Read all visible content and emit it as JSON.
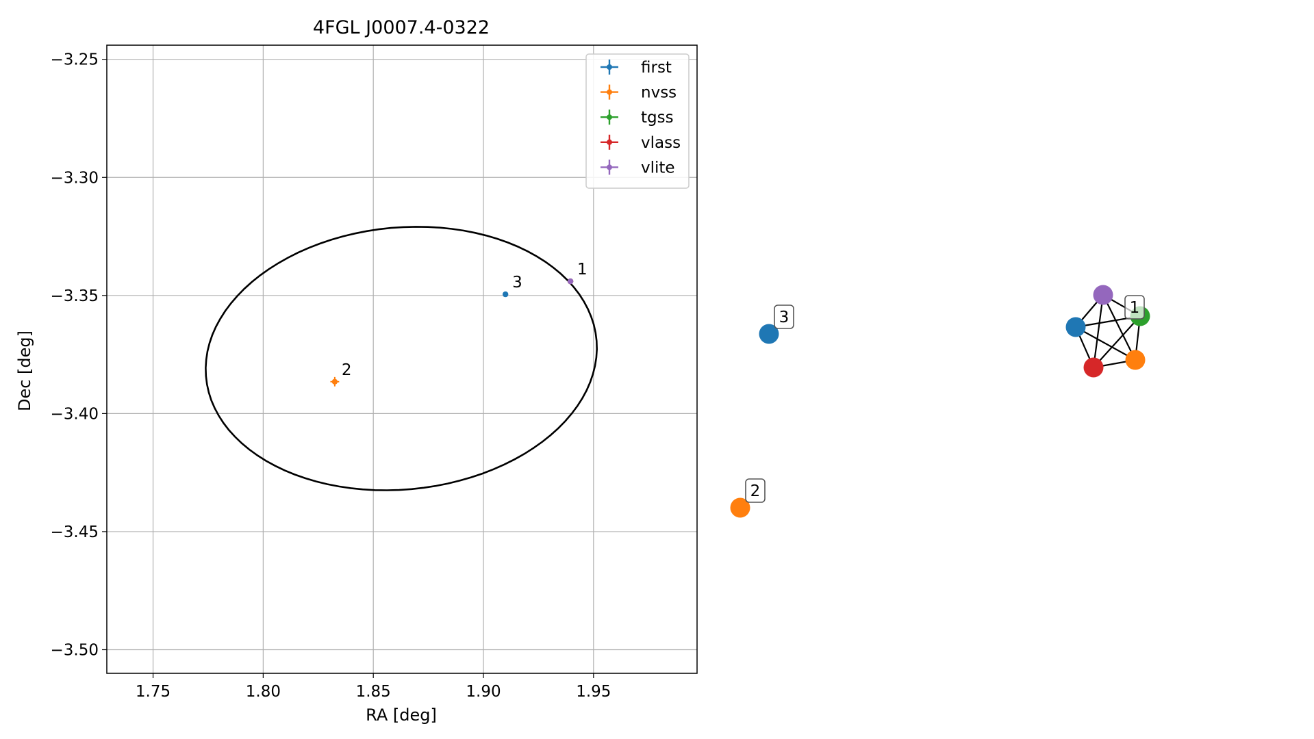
{
  "chart_data": [
    {
      "type": "scatter",
      "title": "4FGL J0007.4-0322",
      "xlabel": "RA [deg]",
      "ylabel": "Dec [deg]",
      "xlim": [
        1.729,
        1.997
      ],
      "ylim": [
        -3.51,
        -3.244
      ],
      "xticks": [
        1.75,
        1.8,
        1.85,
        1.9,
        1.95
      ],
      "xtick_labels": [
        "1.75",
        "1.80",
        "1.85",
        "1.90",
        "1.95"
      ],
      "yticks": [
        -3.25,
        -3.3,
        -3.35,
        -3.4,
        -3.45,
        -3.5
      ],
      "ytick_labels": [
        "−3.25",
        "−3.30",
        "−3.35",
        "−3.40",
        "−3.45",
        "−3.50"
      ],
      "grid": true,
      "legend_position": "top-right",
      "series": [
        {
          "name": "first",
          "color": "#1f77b4",
          "points": [
            {
              "x": 1.91,
              "y": -3.3495,
              "xerr": 0.001,
              "yerr": 0.001
            }
          ]
        },
        {
          "name": "nvss",
          "color": "#ff7f0e",
          "points": [
            {
              "x": 1.8325,
              "y": -3.3865,
              "xerr": 0.002,
              "yerr": 0.002
            }
          ]
        },
        {
          "name": "tgss",
          "color": "#2ca02c",
          "points": [
            {
              "x": 1.9395,
              "y": -3.344,
              "xerr": 0.001,
              "yerr": 0.001
            }
          ]
        },
        {
          "name": "vlass",
          "color": "#d62728",
          "points": [
            {
              "x": 1.9395,
              "y": -3.344,
              "xerr": 0.0005,
              "yerr": 0.0005
            }
          ]
        },
        {
          "name": "vlite",
          "color": "#9467bd",
          "points": [
            {
              "x": 1.9395,
              "y": -3.344,
              "xerr": 0.001,
              "yerr": 0.001
            }
          ]
        }
      ],
      "ellipse": {
        "center_x": 1.8627,
        "center_y": -3.3767,
        "width": 0.178,
        "height": 0.111,
        "angle_deg": 4.8,
        "color": "#000000"
      },
      "annotations": [
        {
          "text": "1",
          "x": 1.9395,
          "y": -3.344
        },
        {
          "text": "2",
          "x": 1.8325,
          "y": -3.3865
        },
        {
          "text": "3",
          "x": 1.91,
          "y": -3.3495
        }
      ]
    },
    {
      "type": "network",
      "nodes": [
        {
          "id": "n3",
          "color": "#1f77b4"
        },
        {
          "id": "n2",
          "color": "#ff7f0e"
        },
        {
          "id": "c_purple",
          "color": "#9467bd"
        },
        {
          "id": "c_green",
          "color": "#2ca02c"
        },
        {
          "id": "c_orange",
          "color": "#ff7f0e"
        },
        {
          "id": "c_red",
          "color": "#d62728"
        },
        {
          "id": "c_blue",
          "color": "#1f77b4"
        }
      ],
      "edges": [
        [
          "c_purple",
          "c_green"
        ],
        [
          "c_purple",
          "c_orange"
        ],
        [
          "c_purple",
          "c_red"
        ],
        [
          "c_purple",
          "c_blue"
        ],
        [
          "c_green",
          "c_orange"
        ],
        [
          "c_green",
          "c_red"
        ],
        [
          "c_green",
          "c_blue"
        ],
        [
          "c_orange",
          "c_red"
        ],
        [
          "c_orange",
          "c_blue"
        ],
        [
          "c_red",
          "c_blue"
        ]
      ],
      "labels": [
        {
          "text": "3",
          "node": "n3"
        },
        {
          "text": "2",
          "node": "n2"
        },
        {
          "text": "1",
          "node": "c_green"
        }
      ]
    }
  ]
}
